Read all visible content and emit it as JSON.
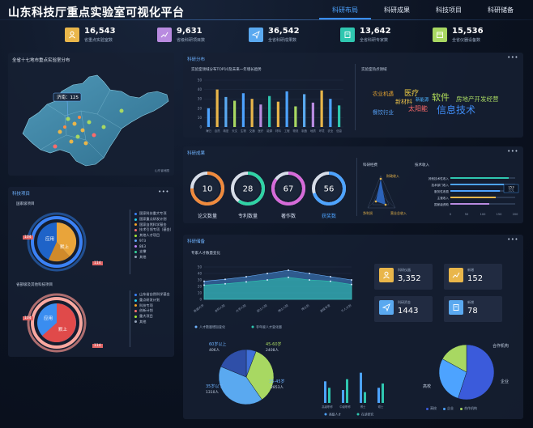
{
  "app": {
    "title": "山东科技厅重点实验室可视化平台",
    "nav": [
      "科研布局",
      "科研成果",
      "科技项目",
      "科研储备"
    ]
  },
  "kpis": [
    {
      "value": "16,543",
      "label": "省重点实验室数",
      "color": "#e9b64a",
      "icon": "person-icon"
    },
    {
      "value": "9,631",
      "label": "省级科研项目数",
      "color": "#b98be0",
      "icon": "chart-up-icon"
    },
    {
      "value": "36,542",
      "label": "全省科研成果数",
      "color": "#5aa9f0",
      "icon": "paper-plane-icon"
    },
    {
      "value": "13,642",
      "label": "全省科研专家数",
      "color": "#2fc7b0",
      "icon": "book-icon"
    },
    {
      "value": "15,536",
      "label": "全省仪器设备数",
      "color": "#a8d862",
      "icon": "calendar-icon"
    }
  ],
  "map_panel": {
    "title": "全省十七地市重点实验室分布",
    "tooltip": "济南：125",
    "credit": "山东省地图"
  },
  "projects_panel": {
    "title": "科技项目",
    "section1": "国家级项目",
    "section2": "省部级及其他科技项目",
    "donut1": {
      "center_top": "应用",
      "center_bottom": "默上",
      "left_badge": "104",
      "right_badge": "114"
    },
    "donut2": {
      "center_top": "应用",
      "center_bottom": "默上",
      "left_badge": "104",
      "right_badge": "114"
    },
    "legend1": [
      {
        "label": "国家科技重大专项",
        "color": "#3b82f6"
      },
      {
        "label": "国家重点研发计划",
        "color": "#22d3ee"
      },
      {
        "label": "国家自然科学基金",
        "color": "#f5a524"
      },
      {
        "label": "技术引领专项（基金）",
        "color": "#f87171"
      },
      {
        "label": "其他人才项目",
        "color": "#a3e635"
      },
      {
        "label": "973",
        "color": "#60a5fa"
      },
      {
        "label": "863",
        "color": "#c084fc"
      },
      {
        "label": "支撑",
        "color": "#34d399"
      },
      {
        "label": "其他",
        "color": "#94a3b8"
      }
    ],
    "legend2": [
      {
        "label": "山东省自然科学基金",
        "color": "#3b82f6"
      },
      {
        "label": "重点研发计划",
        "color": "#22d3ee"
      },
      {
        "label": "科技专项",
        "color": "#f5a524"
      },
      {
        "label": "创新计划",
        "color": "#f87171"
      },
      {
        "label": "重大项目",
        "color": "#a3e635"
      },
      {
        "label": "其他",
        "color": "#94a3b8"
      }
    ]
  },
  "dist_panel": {
    "title": "科研分布",
    "bar_title": "实验室领域分布TOP10及未来一年增长趋势",
    "word_title": "实验室热点领域",
    "words": [
      {
        "text": "农业机遇",
        "color": "#e0a030"
      },
      {
        "text": "医疗",
        "color": "#f5d142"
      },
      {
        "text": "新材料",
        "color": "#e9c04a"
      },
      {
        "text": "新能源",
        "color": "#4db3ff"
      },
      {
        "text": "软件",
        "color": "#b6e35a"
      },
      {
        "text": "房地产开发经营",
        "color": "#a8d862"
      },
      {
        "text": "餐饮行业",
        "color": "#58a6ff"
      },
      {
        "text": "太阳能",
        "color": "#ff6b6b"
      },
      {
        "text": "信息技术",
        "color": "#3f8cf5"
      }
    ]
  },
  "results_panel": {
    "title": "科研成果",
    "rings": [
      {
        "value": "10",
        "label": "论文数量",
        "color": "#f08a3c"
      },
      {
        "value": "28",
        "label": "专利数量",
        "color": "#2fd3a5"
      },
      {
        "value": "67",
        "label": "著作数",
        "color": "#d66ad9"
      },
      {
        "value": "56",
        "label": "获奖数",
        "color": "#4da3ff"
      }
    ],
    "radar_title": "科研经费",
    "radar_labels": [
      "财政收入",
      "净利润",
      "营业总收入"
    ],
    "tech_title": "技术收入",
    "tech_rows": [
      {
        "label": "其他技术性收入",
        "color": "#2fc7b0"
      },
      {
        "label": "技术部门收入",
        "color": "#4da3ff"
      },
      {
        "label": "服务性收费",
        "color": "#4da3ff"
      },
      {
        "label": "主营收入",
        "color": "#e9b64a"
      },
      {
        "label": "国家级资助",
        "color": "#b98be0"
      }
    ],
    "tech_tooltip": {
      "value": "153",
      "unit": "万元"
    }
  },
  "reserve_panel": {
    "title": "科研储备",
    "chart_title": "专家人才数量变化",
    "stats": [
      {
        "label": "科研仪器",
        "value": "3,352",
        "color": "#e9b64a"
      },
      {
        "label": "新增",
        "value": "152",
        "color": "#e9b64a"
      },
      {
        "label": "科研资金",
        "value": "1443",
        "color": "#5aa9f0"
      },
      {
        "label": "新增",
        "value": "78",
        "color": "#5aa9f0"
      }
    ],
    "pie1_labels": [
      {
        "text": "60岁以上",
        "sub": "406人",
        "color": "#3f8cf5"
      },
      {
        "text": "45-60岁",
        "sub": "2408人",
        "color": "#a8d862"
      },
      {
        "text": "35-45岁",
        "sub": "2853人",
        "color": "#5aa9f0"
      },
      {
        "text": "35岁以下",
        "sub": "1310人",
        "color": "#5aa9f0"
      }
    ],
    "pie2_labels": [
      "合作机构",
      "企业",
      "高校"
    ],
    "pie2_legend": [
      {
        "label": "高校",
        "color": "#3b5bdb"
      },
      {
        "label": "企业",
        "color": "#4da3ff"
      },
      {
        "label": "合作机构",
        "color": "#a8d862"
      }
    ]
  },
  "chart_data": [
    {
      "type": "bar",
      "title": "实验室领域分布TOP10及未来一年增长趋势",
      "ylim": [
        0,
        50
      ],
      "yticks": [
        "50",
        "40",
        "30",
        "20",
        "10",
        "0"
      ],
      "categories": [
        "海归",
        "自然",
        "精密",
        "天文",
        "生物",
        "交通",
        "医疗",
        "能源",
        "材料",
        "工程",
        "物流",
        "制造",
        "地质",
        "环境",
        "农业",
        "信息"
      ],
      "values": [
        20,
        40,
        32,
        28,
        36,
        30,
        24,
        33,
        27,
        38,
        22,
        35,
        26,
        39,
        30,
        23
      ],
      "colors": [
        "#4da3ff",
        "#e9b64a",
        "#5aa9f0",
        "#a8d862",
        "#4da3ff",
        "#e9b64a",
        "#b98be0",
        "#2fc7b0",
        "#e9b64a",
        "#4da3ff",
        "#a8d862",
        "#5aa9f0",
        "#b98be0",
        "#e9b64a",
        "#4da3ff",
        "#2fc7b0"
      ]
    },
    {
      "type": "bar",
      "title": "技术收入",
      "orientation": "horizontal",
      "categories": [
        "其他技术性收入",
        "技术部门收入",
        "服务性收费",
        "主营收入",
        "国家级资助"
      ],
      "values": [
        180,
        165,
        153,
        140,
        120
      ],
      "xlim": [
        0,
        200
      ],
      "xticks": [
        "0",
        "50",
        "100",
        "150",
        "200"
      ]
    },
    {
      "type": "area",
      "title": "专家人才数量变化",
      "categories": [
        "新建大学",
        "本科入院",
        "大学入院",
        "硕士入院",
        "博士入院",
        "博士后",
        "高级专家",
        "千人计划"
      ],
      "ylim": [
        0,
        50
      ],
      "yticks": [
        "50",
        "40",
        "30",
        "20",
        "10",
        "0"
      ],
      "series": [
        {
          "name": "人才数量增加变化",
          "values": [
            28,
            31,
            35,
            40,
            45,
            40,
            35,
            30
          ]
        },
        {
          "name": "非年度人才变化量",
          "values": [
            22,
            24,
            27,
            30,
            34,
            30,
            28,
            23
          ]
        }
      ]
    },
    {
      "type": "pie",
      "categories": [
        "60岁以上",
        "45-60岁",
        "35-45岁",
        "35岁以下"
      ],
      "values": [
        406,
        2408,
        2853,
        1310
      ]
    },
    {
      "type": "bar",
      "categories": [
        "高级职称",
        "中级职称",
        "博士",
        "硕士"
      ],
      "series": [
        {
          "name": "高级人才",
          "values": [
            20,
            12,
            28,
            14
          ]
        },
        {
          "name": "在读研究",
          "values": [
            14,
            22,
            10,
            18
          ]
        }
      ],
      "legend": [
        "高级人才",
        "在读研究"
      ]
    },
    {
      "type": "pie",
      "categories": [
        "高校",
        "企业",
        "合作机构"
      ],
      "values": [
        55,
        28,
        17
      ]
    }
  ]
}
